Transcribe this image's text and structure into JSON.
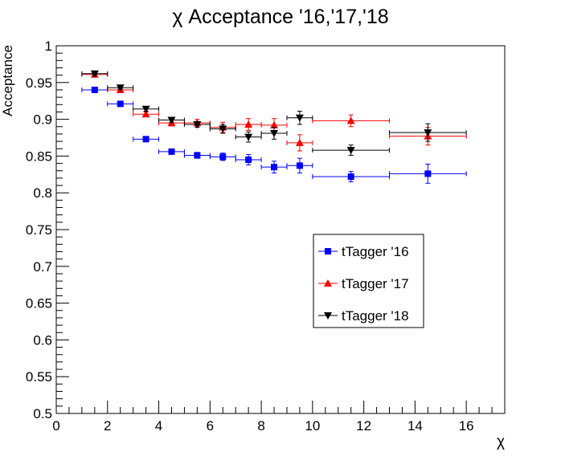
{
  "chart_data": {
    "type": "scatter",
    "title": "χ Acceptance '16,'17,'18",
    "xlabel": "χ",
    "ylabel": "Acceptance",
    "xlim": [
      0,
      17.5
    ],
    "ylim": [
      0.5,
      1
    ],
    "x_ticks": [
      0,
      2,
      4,
      6,
      8,
      10,
      12,
      14,
      16
    ],
    "y_ticks": [
      0.5,
      0.55,
      0.6,
      0.65,
      0.7,
      0.75,
      0.8,
      0.85,
      0.9,
      0.95,
      1
    ],
    "grid": false,
    "legend_position": "center-right",
    "series": [
      {
        "name": "tTagger '16",
        "color": "#0000ff",
        "marker": "square",
        "points": [
          {
            "x": 1.5,
            "y": 0.94,
            "xlo": 1,
            "xhi": 2,
            "err": 0.002
          },
          {
            "x": 2.5,
            "y": 0.921,
            "xlo": 2,
            "xhi": 3,
            "err": 0.002
          },
          {
            "x": 3.5,
            "y": 0.873,
            "xlo": 3,
            "xhi": 4,
            "err": 0.002
          },
          {
            "x": 4.5,
            "y": 0.856,
            "xlo": 4,
            "xhi": 5,
            "err": 0.003
          },
          {
            "x": 5.5,
            "y": 0.851,
            "xlo": 5,
            "xhi": 6,
            "err": 0.004
          },
          {
            "x": 6.5,
            "y": 0.849,
            "xlo": 6,
            "xhi": 7,
            "err": 0.005
          },
          {
            "x": 7.5,
            "y": 0.845,
            "xlo": 7,
            "xhi": 8,
            "err": 0.007
          },
          {
            "x": 8.5,
            "y": 0.835,
            "xlo": 8,
            "xhi": 9,
            "err": 0.008
          },
          {
            "x": 9.5,
            "y": 0.837,
            "xlo": 9,
            "xhi": 10,
            "err": 0.01
          },
          {
            "x": 11.5,
            "y": 0.822,
            "xlo": 10,
            "xhi": 13,
            "err": 0.007
          },
          {
            "x": 14.5,
            "y": 0.826,
            "xlo": 13,
            "xhi": 16,
            "err": 0.013
          }
        ]
      },
      {
        "name": "tTagger '17",
        "color": "#ff0000",
        "marker": "triangle-up",
        "points": [
          {
            "x": 1.5,
            "y": 0.961,
            "xlo": 1,
            "xhi": 2,
            "err": 0.002
          },
          {
            "x": 2.5,
            "y": 0.94,
            "xlo": 2,
            "xhi": 3,
            "err": 0.002
          },
          {
            "x": 3.5,
            "y": 0.907,
            "xlo": 3,
            "xhi": 4,
            "err": 0.003
          },
          {
            "x": 4.5,
            "y": 0.895,
            "xlo": 4,
            "xhi": 5,
            "err": 0.004
          },
          {
            "x": 5.5,
            "y": 0.895,
            "xlo": 5,
            "xhi": 6,
            "err": 0.005
          },
          {
            "x": 6.5,
            "y": 0.889,
            "xlo": 6,
            "xhi": 7,
            "err": 0.007
          },
          {
            "x": 7.5,
            "y": 0.893,
            "xlo": 7,
            "xhi": 8,
            "err": 0.008
          },
          {
            "x": 8.5,
            "y": 0.892,
            "xlo": 8,
            "xhi": 9,
            "err": 0.009
          },
          {
            "x": 9.5,
            "y": 0.868,
            "xlo": 9,
            "xhi": 10,
            "err": 0.011
          },
          {
            "x": 11.5,
            "y": 0.898,
            "xlo": 10,
            "xhi": 13,
            "err": 0.008
          },
          {
            "x": 14.5,
            "y": 0.877,
            "xlo": 13,
            "xhi": 16,
            "err": 0.012
          }
        ]
      },
      {
        "name": "tTagger '18",
        "color": "#000000",
        "marker": "triangle-down",
        "points": [
          {
            "x": 1.5,
            "y": 0.962,
            "xlo": 1,
            "xhi": 2,
            "err": 0.002
          },
          {
            "x": 2.5,
            "y": 0.943,
            "xlo": 2,
            "xhi": 3,
            "err": 0.002
          },
          {
            "x": 3.5,
            "y": 0.914,
            "xlo": 3,
            "xhi": 4,
            "err": 0.003
          },
          {
            "x": 4.5,
            "y": 0.899,
            "xlo": 4,
            "xhi": 5,
            "err": 0.003
          },
          {
            "x": 5.5,
            "y": 0.893,
            "xlo": 5,
            "xhi": 6,
            "err": 0.004
          },
          {
            "x": 6.5,
            "y": 0.887,
            "xlo": 6,
            "xhi": 7,
            "err": 0.006
          },
          {
            "x": 7.5,
            "y": 0.876,
            "xlo": 7,
            "xhi": 8,
            "err": 0.007
          },
          {
            "x": 8.5,
            "y": 0.881,
            "xlo": 8,
            "xhi": 9,
            "err": 0.008
          },
          {
            "x": 9.5,
            "y": 0.902,
            "xlo": 9,
            "xhi": 10,
            "err": 0.009
          },
          {
            "x": 11.5,
            "y": 0.858,
            "xlo": 10,
            "xhi": 13,
            "err": 0.007
          },
          {
            "x": 14.5,
            "y": 0.882,
            "xlo": 13,
            "xhi": 16,
            "err": 0.012
          }
        ]
      }
    ]
  }
}
